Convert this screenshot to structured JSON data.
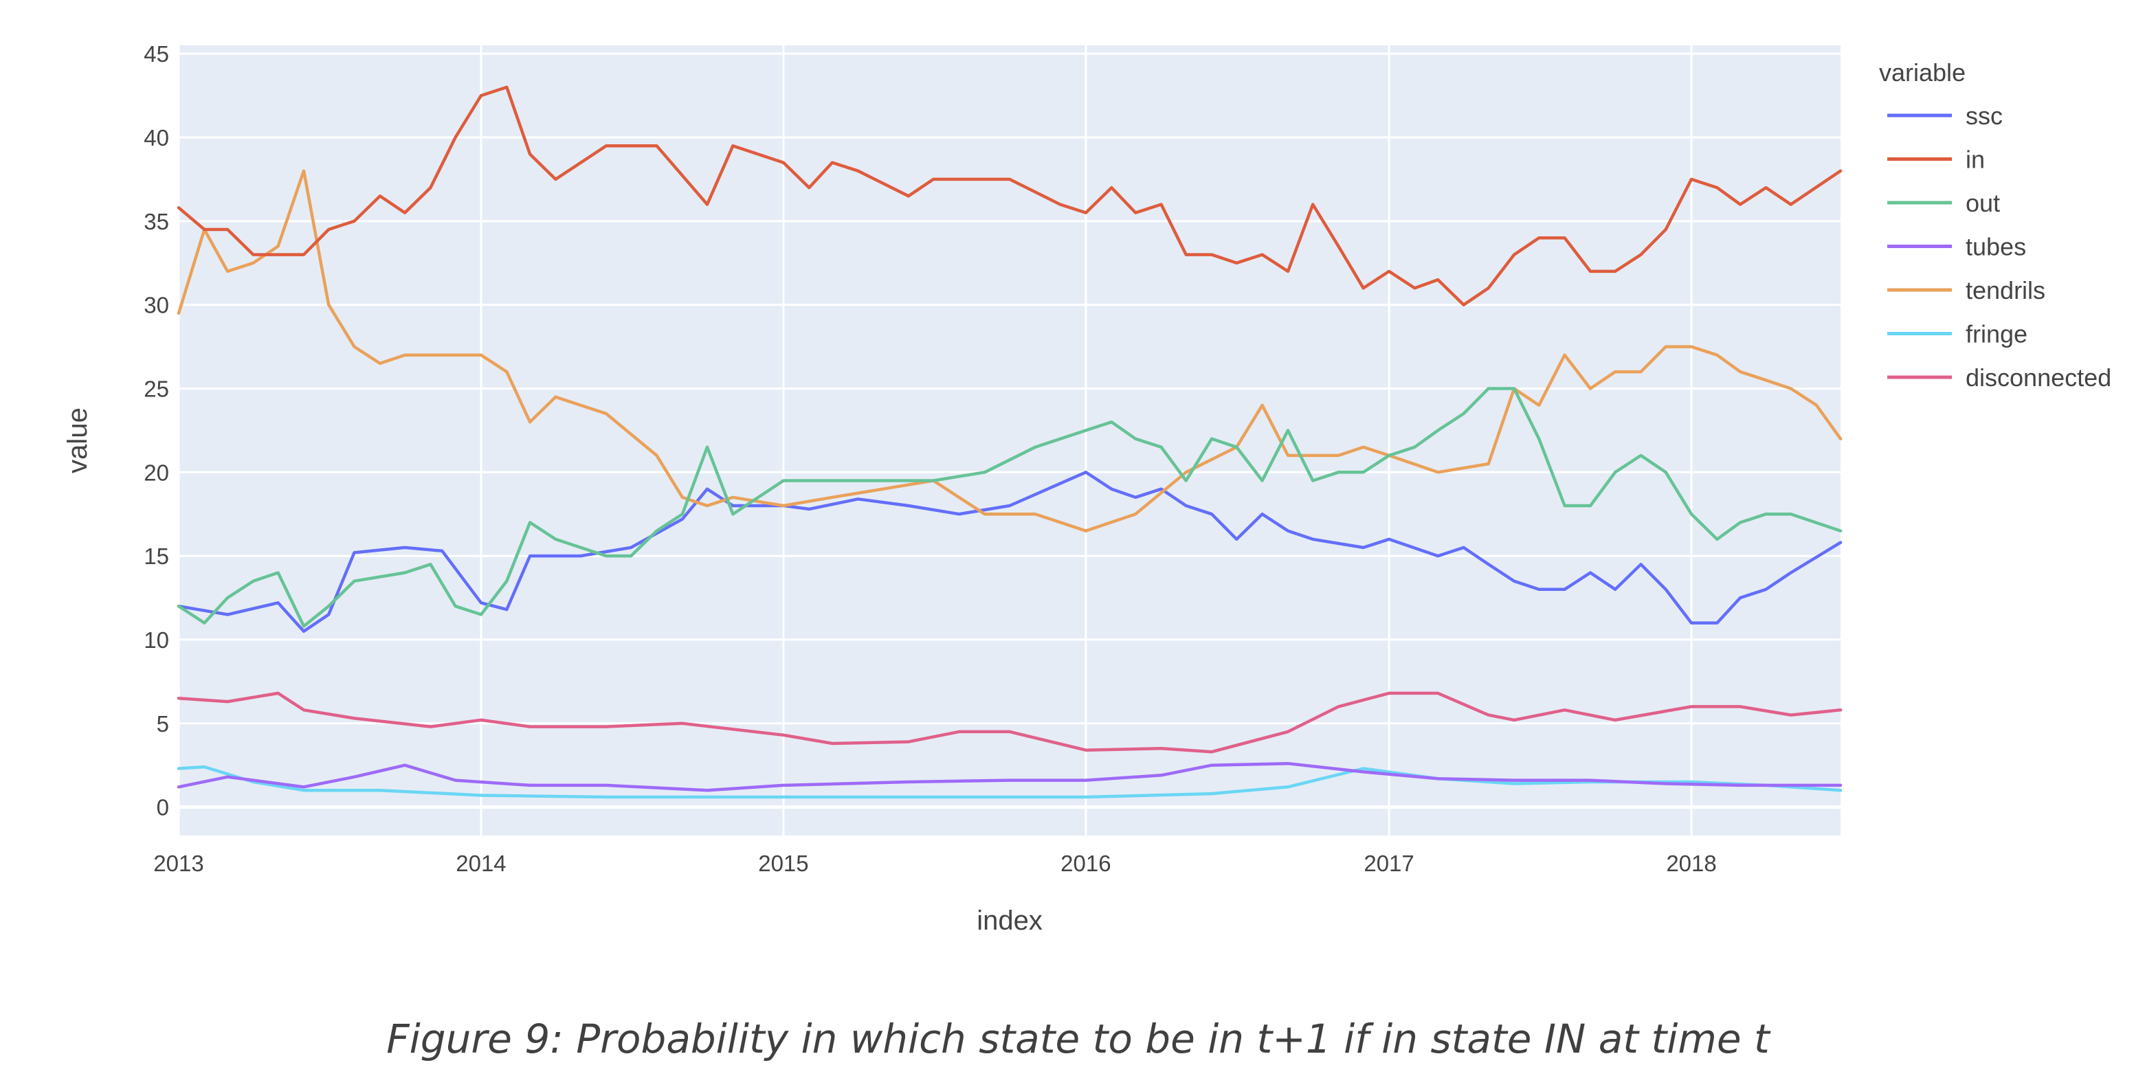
{
  "caption": "Figure 9: Probability in which state to be in t+1 if in state IN at time t",
  "chart_data": {
    "type": "line",
    "title": "",
    "xlabel": "index",
    "ylabel": "value",
    "xlim": [
      "2013-01-01",
      "2018-06-30"
    ],
    "ylim": [
      -1.7,
      45.5
    ],
    "x_ticks": [
      "2013",
      "2014",
      "2015",
      "2016",
      "2017",
      "2018"
    ],
    "y_ticks": [
      0,
      5,
      10,
      15,
      20,
      25,
      30,
      35,
      40,
      45
    ],
    "grid": true,
    "plot_background": "#E5ECF6",
    "legend": {
      "title": "variable",
      "placement": "right"
    },
    "series": [
      {
        "name": "ssc",
        "color": "#636EFA",
        "x": [
          "2013-01-01",
          "2013-03-01",
          "2013-05-01",
          "2013-06-01",
          "2013-07-01",
          "2013-08-01",
          "2013-10-01",
          "2013-11-15",
          "2014-01-01",
          "2014-02-01",
          "2014-03-01",
          "2014-05-01",
          "2014-07-01",
          "2014-09-01",
          "2014-10-01",
          "2014-11-01",
          "2015-01-01",
          "2015-02-01",
          "2015-04-01",
          "2015-06-01",
          "2015-08-01",
          "2015-10-01",
          "2016-01-01",
          "2016-02-01",
          "2016-03-01",
          "2016-04-01",
          "2016-05-01",
          "2016-06-01",
          "2016-07-01",
          "2016-08-01",
          "2016-09-01",
          "2016-10-01",
          "2016-12-01",
          "2017-01-01",
          "2017-03-01",
          "2017-04-01",
          "2017-05-01",
          "2017-06-01",
          "2017-07-01",
          "2017-08-01",
          "2017-09-01",
          "2017-10-01",
          "2017-11-01",
          "2017-12-01",
          "2018-01-01",
          "2018-02-01",
          "2018-03-01",
          "2018-04-01",
          "2018-05-01",
          "2018-06-30"
        ],
        "values": [
          12.0,
          11.5,
          12.2,
          10.5,
          11.5,
          15.2,
          15.5,
          15.3,
          12.2,
          11.8,
          15.0,
          15.0,
          15.5,
          17.2,
          19.0,
          18.0,
          18.0,
          17.8,
          18.4,
          18.0,
          17.5,
          18.0,
          20.0,
          19.0,
          18.5,
          19.0,
          18.0,
          17.5,
          16.0,
          17.5,
          16.5,
          16.0,
          15.5,
          16.0,
          15.0,
          15.5,
          14.5,
          13.5,
          13.0,
          13.0,
          14.0,
          13.0,
          14.5,
          13.0,
          11.0,
          11.0,
          12.5,
          13.0,
          14.0,
          15.8
        ]
      },
      {
        "name": "in",
        "color": "#DE5C3D",
        "x": [
          "2013-01-01",
          "2013-02-01",
          "2013-03-01",
          "2013-04-01",
          "2013-05-01",
          "2013-06-01",
          "2013-07-01",
          "2013-08-01",
          "2013-09-01",
          "2013-10-01",
          "2013-11-01",
          "2013-12-01",
          "2014-01-01",
          "2014-02-01",
          "2014-03-01",
          "2014-04-01",
          "2014-06-01",
          "2014-08-01",
          "2014-10-01",
          "2014-11-01",
          "2015-01-01",
          "2015-02-01",
          "2015-03-01",
          "2015-04-01",
          "2015-06-01",
          "2015-07-01",
          "2015-08-01",
          "2015-10-01",
          "2015-12-01",
          "2016-01-01",
          "2016-02-01",
          "2016-03-01",
          "2016-04-01",
          "2016-05-01",
          "2016-06-01",
          "2016-07-01",
          "2016-08-01",
          "2016-09-01",
          "2016-10-01",
          "2016-11-01",
          "2016-12-01",
          "2017-01-01",
          "2017-02-01",
          "2017-03-01",
          "2017-04-01",
          "2017-05-01",
          "2017-06-01",
          "2017-07-01",
          "2017-08-01",
          "2017-09-01",
          "2017-10-01",
          "2017-11-01",
          "2017-12-01",
          "2018-01-01",
          "2018-02-01",
          "2018-03-01",
          "2018-04-01",
          "2018-05-01",
          "2018-06-30"
        ],
        "values": [
          35.8,
          34.5,
          34.5,
          33.0,
          33.0,
          33.0,
          34.5,
          35.0,
          36.5,
          35.5,
          37.0,
          40.0,
          42.5,
          43.0,
          39.0,
          37.5,
          39.5,
          39.5,
          36.0,
          39.5,
          38.5,
          37.0,
          38.5,
          38.0,
          36.5,
          37.5,
          37.5,
          37.5,
          36.0,
          35.5,
          37.0,
          35.5,
          36.0,
          33.0,
          33.0,
          32.5,
          33.0,
          32.0,
          36.0,
          33.5,
          31.0,
          32.0,
          31.0,
          31.5,
          30.0,
          31.0,
          33.0,
          34.0,
          34.0,
          32.0,
          32.0,
          33.0,
          34.5,
          37.5,
          37.0,
          36.0,
          37.0,
          36.0,
          38.0
        ]
      },
      {
        "name": "out",
        "color": "#66C396",
        "x": [
          "2013-01-01",
          "2013-02-01",
          "2013-03-01",
          "2013-04-01",
          "2013-05-01",
          "2013-06-01",
          "2013-07-01",
          "2013-08-01",
          "2013-10-01",
          "2013-11-01",
          "2013-12-01",
          "2014-01-01",
          "2014-02-01",
          "2014-03-01",
          "2014-04-01",
          "2014-06-01",
          "2014-07-01",
          "2014-08-01",
          "2014-09-01",
          "2014-10-01",
          "2014-11-01",
          "2015-01-01",
          "2015-02-01",
          "2015-03-01",
          "2015-05-01",
          "2015-07-01",
          "2015-09-01",
          "2015-11-01",
          "2016-01-01",
          "2016-02-01",
          "2016-03-01",
          "2016-04-01",
          "2016-05-01",
          "2016-06-01",
          "2016-07-01",
          "2016-08-01",
          "2016-09-01",
          "2016-10-01",
          "2016-11-01",
          "2016-12-01",
          "2017-01-01",
          "2017-02-01",
          "2017-03-01",
          "2017-04-01",
          "2017-05-01",
          "2017-06-01",
          "2017-07-01",
          "2017-08-01",
          "2017-09-01",
          "2017-10-01",
          "2017-11-01",
          "2017-12-01",
          "2018-01-01",
          "2018-02-01",
          "2018-03-01",
          "2018-04-01",
          "2018-05-01",
          "2018-06-30"
        ],
        "values": [
          12.0,
          11.0,
          12.5,
          13.5,
          14.0,
          10.8,
          12.0,
          13.5,
          14.0,
          14.5,
          12.0,
          11.5,
          13.5,
          17.0,
          16.0,
          15.0,
          15.0,
          16.5,
          17.5,
          21.5,
          17.5,
          19.5,
          19.5,
          19.5,
          19.5,
          19.5,
          20.0,
          21.5,
          22.5,
          23.0,
          22.0,
          21.5,
          19.5,
          22.0,
          21.5,
          19.5,
          22.5,
          19.5,
          20.0,
          20.0,
          21.0,
          21.5,
          22.5,
          23.5,
          25.0,
          25.0,
          22.0,
          18.0,
          18.0,
          20.0,
          21.0,
          20.0,
          17.5,
          16.0,
          17.0,
          17.5,
          17.5,
          16.5
        ]
      },
      {
        "name": "tubes",
        "color": "#9E6AF8",
        "x": [
          "2013-01-01",
          "2013-03-01",
          "2013-06-01",
          "2013-08-01",
          "2013-10-01",
          "2013-12-01",
          "2014-03-01",
          "2014-06-01",
          "2014-10-01",
          "2015-01-01",
          "2015-06-01",
          "2015-10-01",
          "2016-01-01",
          "2016-04-01",
          "2016-06-01",
          "2016-09-01",
          "2016-12-01",
          "2017-03-01",
          "2017-06-01",
          "2017-09-01",
          "2017-12-01",
          "2018-03-01",
          "2018-06-30"
        ],
        "values": [
          1.2,
          1.8,
          1.2,
          1.8,
          2.5,
          1.6,
          1.3,
          1.3,
          1.0,
          1.3,
          1.5,
          1.6,
          1.6,
          1.9,
          2.5,
          2.6,
          2.1,
          1.7,
          1.6,
          1.6,
          1.4,
          1.3,
          1.3
        ]
      },
      {
        "name": "fringe",
        "color": "#6AD6F4",
        "x": [
          "2013-01-01",
          "2013-02-01",
          "2013-04-01",
          "2013-06-01",
          "2013-09-01",
          "2014-01-01",
          "2014-06-01",
          "2015-01-01",
          "2015-06-01",
          "2016-01-01",
          "2016-06-01",
          "2016-09-01",
          "2016-12-01",
          "2017-03-01",
          "2017-06-01",
          "2017-09-01",
          "2018-01-01",
          "2018-04-01",
          "2018-06-30"
        ],
        "values": [
          2.3,
          2.4,
          1.5,
          1.0,
          1.0,
          0.7,
          0.6,
          0.6,
          0.6,
          0.6,
          0.8,
          1.2,
          2.3,
          1.7,
          1.4,
          1.5,
          1.5,
          1.3,
          1.0
        ]
      },
      {
        "name": "disconnected",
        "color": "#E0608A",
        "x": [
          "2013-01-01",
          "2013-03-01",
          "2013-05-01",
          "2013-06-01",
          "2013-08-01",
          "2013-11-01",
          "2014-01-01",
          "2014-03-01",
          "2014-06-01",
          "2014-09-01",
          "2015-01-01",
          "2015-03-01",
          "2015-06-01",
          "2015-08-01",
          "2015-10-01",
          "2016-01-01",
          "2016-04-01",
          "2016-06-01",
          "2016-09-01",
          "2016-11-01",
          "2017-01-01",
          "2017-03-01",
          "2017-05-01",
          "2017-06-01",
          "2017-08-01",
          "2017-10-01",
          "2018-01-01",
          "2018-03-01",
          "2018-05-01",
          "2018-06-30"
        ],
        "values": [
          6.5,
          6.3,
          6.8,
          5.8,
          5.3,
          4.8,
          5.2,
          4.8,
          4.8,
          5.0,
          4.3,
          3.8,
          3.9,
          4.5,
          4.5,
          3.4,
          3.5,
          3.3,
          4.5,
          6.0,
          6.8,
          6.8,
          5.5,
          5.2,
          5.8,
          5.2,
          6.0,
          6.0,
          5.5,
          5.8
        ]
      },
      {
        "name": "tendrils",
        "color": "#EAA15A",
        "x": [
          "2013-01-01",
          "2013-02-01",
          "2013-03-01",
          "2013-04-01",
          "2013-05-01",
          "2013-06-01",
          "2013-07-01",
          "2013-08-01",
          "2013-09-01",
          "2013-10-01",
          "2013-12-01",
          "2014-01-01",
          "2014-02-01",
          "2014-03-01",
          "2014-04-01",
          "2014-06-01",
          "2014-08-01",
          "2014-09-01",
          "2014-10-01",
          "2014-11-01",
          "2015-01-01",
          "2015-03-01",
          "2015-05-01",
          "2015-07-01",
          "2015-09-01",
          "2015-11-01",
          "2016-01-01",
          "2016-03-01",
          "2016-05-01",
          "2016-07-01",
          "2016-08-01",
          "2016-09-01",
          "2016-11-01",
          "2016-12-01",
          "2017-01-01",
          "2017-03-01",
          "2017-05-01",
          "2017-06-01",
          "2017-07-01",
          "2017-08-01",
          "2017-09-01",
          "2017-10-01",
          "2017-11-01",
          "2017-12-01",
          "2018-01-01",
          "2018-02-01",
          "2018-03-01",
          "2018-04-01",
          "2018-05-01",
          "2018-06-01",
          "2018-06-30"
        ],
        "values": [
          29.5,
          34.5,
          32.0,
          32.5,
          33.5,
          38.0,
          30.0,
          27.5,
          26.5,
          27.0,
          27.0,
          27.0,
          26.0,
          23.0,
          24.5,
          23.5,
          21.0,
          18.5,
          18.0,
          18.5,
          18.0,
          18.5,
          19.0,
          19.5,
          17.5,
          17.5,
          16.5,
          17.5,
          20.0,
          21.5,
          24.0,
          21.0,
          21.0,
          21.5,
          21.0,
          20.0,
          20.5,
          25.0,
          24.0,
          27.0,
          25.0,
          26.0,
          26.0,
          27.5,
          27.5,
          27.0,
          26.0,
          25.5,
          25.0,
          24.0,
          22.0
        ]
      }
    ]
  }
}
